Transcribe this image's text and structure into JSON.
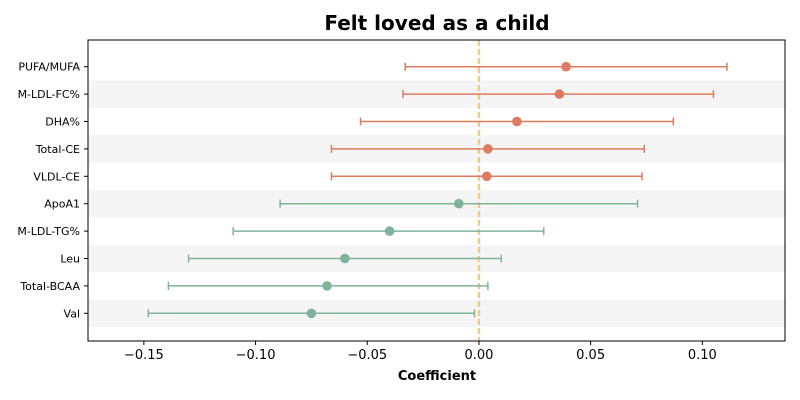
{
  "chart_data": {
    "type": "scatter",
    "title": "Felt loved as a child",
    "xlabel": "Coefficient",
    "ylabel": "",
    "xlim": [
      -0.175,
      0.137
    ],
    "xticks": [
      -0.15,
      -0.1,
      -0.05,
      0.0,
      0.05,
      0.1
    ],
    "xtick_labels": [
      "−0.15",
      "−0.10",
      "−0.05",
      "0.00",
      "0.05",
      "0.10"
    ],
    "reference_line": 0.0,
    "grid": false,
    "row_banding": true,
    "colors": {
      "positive": "#dc7b5f",
      "negative": "#80b39b",
      "reference": "#f2c98a",
      "band": "#f5f5f5"
    },
    "rows": [
      {
        "label": "PUFA/MUFA",
        "estimate": 0.039,
        "lower": -0.033,
        "upper": 0.111,
        "group": "positive"
      },
      {
        "label": "M-LDL-FC%",
        "estimate": 0.036,
        "lower": -0.034,
        "upper": 0.105,
        "group": "positive"
      },
      {
        "label": "DHA%",
        "estimate": 0.017,
        "lower": -0.053,
        "upper": 0.087,
        "group": "positive"
      },
      {
        "label": "Total-CE",
        "estimate": 0.004,
        "lower": -0.066,
        "upper": 0.074,
        "group": "positive"
      },
      {
        "label": "VLDL-CE",
        "estimate": 0.0035,
        "lower": -0.066,
        "upper": 0.073,
        "group": "positive"
      },
      {
        "label": "ApoA1",
        "estimate": -0.009,
        "lower": -0.089,
        "upper": 0.071,
        "group": "negative"
      },
      {
        "label": "M-LDL-TG%",
        "estimate": -0.04,
        "lower": -0.11,
        "upper": 0.029,
        "group": "negative"
      },
      {
        "label": "Leu",
        "estimate": -0.06,
        "lower": -0.13,
        "upper": 0.01,
        "group": "negative"
      },
      {
        "label": "Total-BCAA",
        "estimate": -0.068,
        "lower": -0.139,
        "upper": 0.004,
        "group": "negative"
      },
      {
        "label": "Val",
        "estimate": -0.075,
        "lower": -0.148,
        "upper": -0.002,
        "group": "negative"
      }
    ]
  }
}
